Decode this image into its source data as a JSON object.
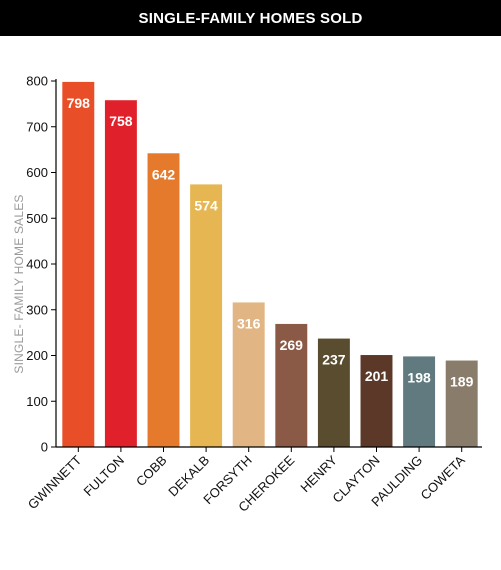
{
  "chart_data": {
    "type": "bar",
    "title": "SINGLE-FAMILY HOMES SOLD",
    "ylabel": "SINGLE- FAMILY HOME SALES",
    "xlabel": "",
    "ylim": [
      0,
      800
    ],
    "yticks": [
      0,
      100,
      200,
      300,
      400,
      500,
      600,
      700,
      800
    ],
    "grid": false,
    "categories": [
      "GWINNETT",
      "FULTON",
      "COBB",
      "DEKALB",
      "FORSYTH",
      "CHEROKEE",
      "HENRY",
      "CLAYTON",
      "PAULDING",
      "COWETA"
    ],
    "values": [
      798,
      758,
      642,
      574,
      316,
      269,
      237,
      201,
      198,
      189
    ],
    "colors": [
      "#e84e27",
      "#e0202a",
      "#e57a2c",
      "#e6b652",
      "#e2b684",
      "#8a5a47",
      "#5a4c2f",
      "#5c3828",
      "#607a80",
      "#8a7c6a"
    ]
  }
}
